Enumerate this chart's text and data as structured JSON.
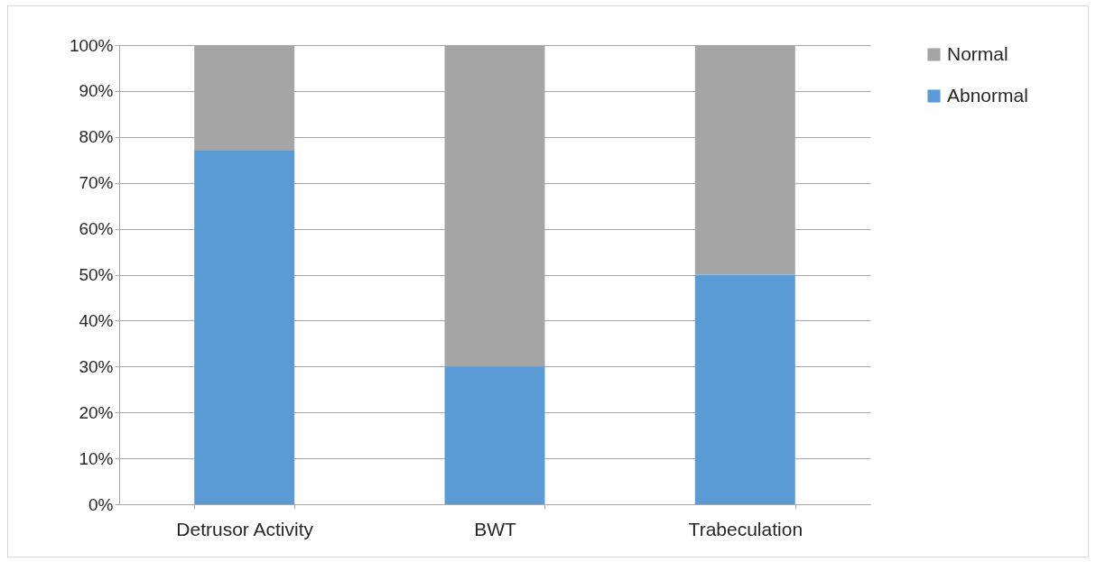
{
  "chart_data": {
    "type": "bar",
    "stacked": true,
    "categories": [
      "Detrusor Activity",
      "BWT",
      "Trabeculation"
    ],
    "series": [
      {
        "name": "Abnormal",
        "color": "#5b9bd5",
        "values": [
          77,
          30,
          50
        ]
      },
      {
        "name": "Normal",
        "color": "#a5a5a5",
        "values": [
          23,
          70,
          50
        ]
      }
    ],
    "ylim": [
      0,
      100
    ],
    "yticks": [
      {
        "value": 0,
        "label": "0%"
      },
      {
        "value": 10,
        "label": "10%"
      },
      {
        "value": 20,
        "label": "20%"
      },
      {
        "value": 30,
        "label": "30%"
      },
      {
        "value": 40,
        "label": "40%"
      },
      {
        "value": 50,
        "label": "50%"
      },
      {
        "value": 60,
        "label": "60%"
      },
      {
        "value": 70,
        "label": "70%"
      },
      {
        "value": 80,
        "label": "80%"
      },
      {
        "value": 90,
        "label": "90%"
      },
      {
        "value": 100,
        "label": "100%"
      }
    ],
    "grid": "y",
    "legend": "right"
  }
}
